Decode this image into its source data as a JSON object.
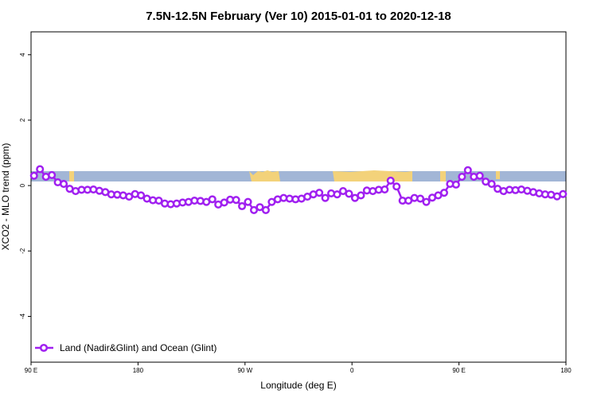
{
  "chart_data": {
    "type": "line",
    "title": "7.5N-12.5N February (Ver 10)   2015-01-01 to 2020-12-18",
    "x_label": "Longitude (deg E)",
    "y_label": "XCO2 - MLO trend (ppm)",
    "xlim": [
      90,
      540
    ],
    "xticks": [
      {
        "value": 90,
        "label": "90 E"
      },
      180,
      {
        "value": 270,
        "label": "90 W"
      },
      {
        "value": 360,
        "label": "0"
      },
      {
        "value": 450,
        "label": "90 E"
      },
      {
        "value": 540,
        "label": "180"
      }
    ],
    "ylim": [
      -5.4,
      4.7
    ],
    "yticks": [
      -4,
      -2,
      0,
      2,
      4
    ],
    "legend": "bottom-left",
    "x": [
      92.5,
      97.5,
      102.5,
      107.5,
      112.5,
      117.5,
      122.5,
      127.5,
      132.5,
      137.5,
      142.5,
      147.5,
      152.5,
      157.5,
      162.5,
      167.5,
      172.5,
      177.5,
      182.5,
      187.5,
      192.5,
      197.5,
      202.5,
      207.5,
      212.5,
      217.5,
      222.5,
      227.5,
      232.5,
      237.5,
      242.5,
      247.5,
      252.5,
      257.5,
      262.5,
      267.5,
      272.5,
      277.5,
      282.5,
      287.5,
      292.5,
      297.5,
      302.5,
      307.5,
      312.5,
      317.5,
      322.5,
      327.5,
      332.5,
      337.5,
      342.5,
      347.5,
      352.5,
      357.5,
      362.5,
      367.5,
      372.5,
      377.5,
      382.5,
      387.5,
      392.5,
      397.5,
      402.5,
      407.5,
      412.5,
      417.5,
      422.5,
      427.5,
      432.5,
      437.5,
      442.5,
      447.5,
      452.5,
      457.5,
      462.5,
      467.5,
      472.5,
      477.5,
      482.5,
      487.5,
      492.5,
      497.5,
      502.5,
      507.5,
      512.5,
      517.5,
      522.5,
      527.5,
      532.5,
      537.5
    ],
    "series": [
      {
        "name": "Land (Nadir&Glint) and Ocean (Glint)",
        "color": "#a020f0",
        "values": [
          0.3,
          0.5,
          0.27,
          0.32,
          0.1,
          0.05,
          -0.1,
          -0.17,
          -0.13,
          -0.13,
          -0.12,
          -0.16,
          -0.2,
          -0.27,
          -0.28,
          -0.3,
          -0.34,
          -0.26,
          -0.3,
          -0.4,
          -0.45,
          -0.46,
          -0.55,
          -0.57,
          -0.55,
          -0.52,
          -0.5,
          -0.46,
          -0.47,
          -0.5,
          -0.42,
          -0.58,
          -0.52,
          -0.43,
          -0.44,
          -0.63,
          -0.5,
          -0.75,
          -0.66,
          -0.75,
          -0.5,
          -0.42,
          -0.38,
          -0.4,
          -0.42,
          -0.4,
          -0.34,
          -0.27,
          -0.22,
          -0.38,
          -0.24,
          -0.27,
          -0.17,
          -0.25,
          -0.38,
          -0.3,
          -0.15,
          -0.17,
          -0.13,
          -0.12,
          0.15,
          -0.03,
          -0.46,
          -0.46,
          -0.38,
          -0.4,
          -0.5,
          -0.37,
          -0.3,
          -0.22,
          0.05,
          0.03,
          0.27,
          0.47,
          0.27,
          0.3,
          0.12,
          0.05,
          -0.1,
          -0.17,
          -0.13,
          -0.14,
          -0.12,
          -0.16,
          -0.2,
          -0.24,
          -0.27,
          -0.28,
          -0.33,
          -0.26
        ]
      }
    ]
  }
}
